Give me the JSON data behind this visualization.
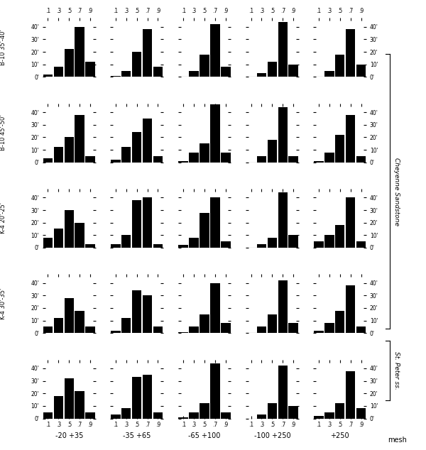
{
  "col_labels": [
    "-20 +35",
    "-35 +65",
    "-65 +100",
    "-100 +250",
    "+250"
  ],
  "row_labels": [
    "B-10 35'-40'",
    "B-10 45'-50'",
    "K-4 20'-25'",
    "K-4 30'-35'",
    ""
  ],
  "right_label_cheyenne": "Cheyenne Sandstone",
  "right_label_stpeter": "St. Peter ss.",
  "x_ticks": [
    0.1,
    0.3,
    0.5,
    0.7,
    0.9
  ],
  "x_tick_labels": [
    ".1",
    ".3",
    ".5",
    ".7",
    ".9"
  ],
  "y_ticks": [
    0,
    10,
    20,
    30,
    40
  ],
  "y_tick_labels": [
    "0'",
    "10'",
    "20'",
    "30'",
    "40'"
  ],
  "ylim": [
    0,
    47
  ],
  "bar_color": "#000000",
  "bar_width": 0.18,
  "histograms": [
    [
      [
        2,
        8,
        22,
        40,
        12
      ],
      [
        1,
        5,
        20,
        38,
        8
      ],
      [
        0,
        5,
        18,
        42,
        8
      ],
      [
        0,
        3,
        12,
        44,
        10
      ],
      [
        0,
        5,
        18,
        38,
        10
      ]
    ],
    [
      [
        3,
        12,
        20,
        38,
        5
      ],
      [
        2,
        12,
        24,
        35,
        5
      ],
      [
        1,
        8,
        15,
        46,
        8
      ],
      [
        0,
        5,
        18,
        44,
        5
      ],
      [
        1,
        8,
        22,
        38,
        5
      ]
    ],
    [
      [
        8,
        15,
        30,
        20,
        3
      ],
      [
        3,
        10,
        38,
        40,
        3
      ],
      [
        2,
        8,
        28,
        40,
        5
      ],
      [
        0,
        3,
        8,
        44,
        10
      ],
      [
        5,
        10,
        18,
        40,
        5
      ]
    ],
    [
      [
        5,
        12,
        28,
        18,
        5
      ],
      [
        2,
        12,
        34,
        30,
        5
      ],
      [
        1,
        5,
        15,
        40,
        8
      ],
      [
        0,
        5,
        15,
        42,
        8
      ],
      [
        2,
        8,
        18,
        38,
        5
      ]
    ],
    [
      [
        5,
        18,
        32,
        22,
        5
      ],
      [
        3,
        8,
        33,
        35,
        5
      ],
      [
        1,
        5,
        12,
        44,
        5
      ],
      [
        0,
        3,
        12,
        42,
        10
      ],
      [
        2,
        5,
        12,
        38,
        8
      ]
    ]
  ],
  "background_color": "#ffffff",
  "figsize": [
    6.0,
    6.34
  ],
  "dpi": 100
}
